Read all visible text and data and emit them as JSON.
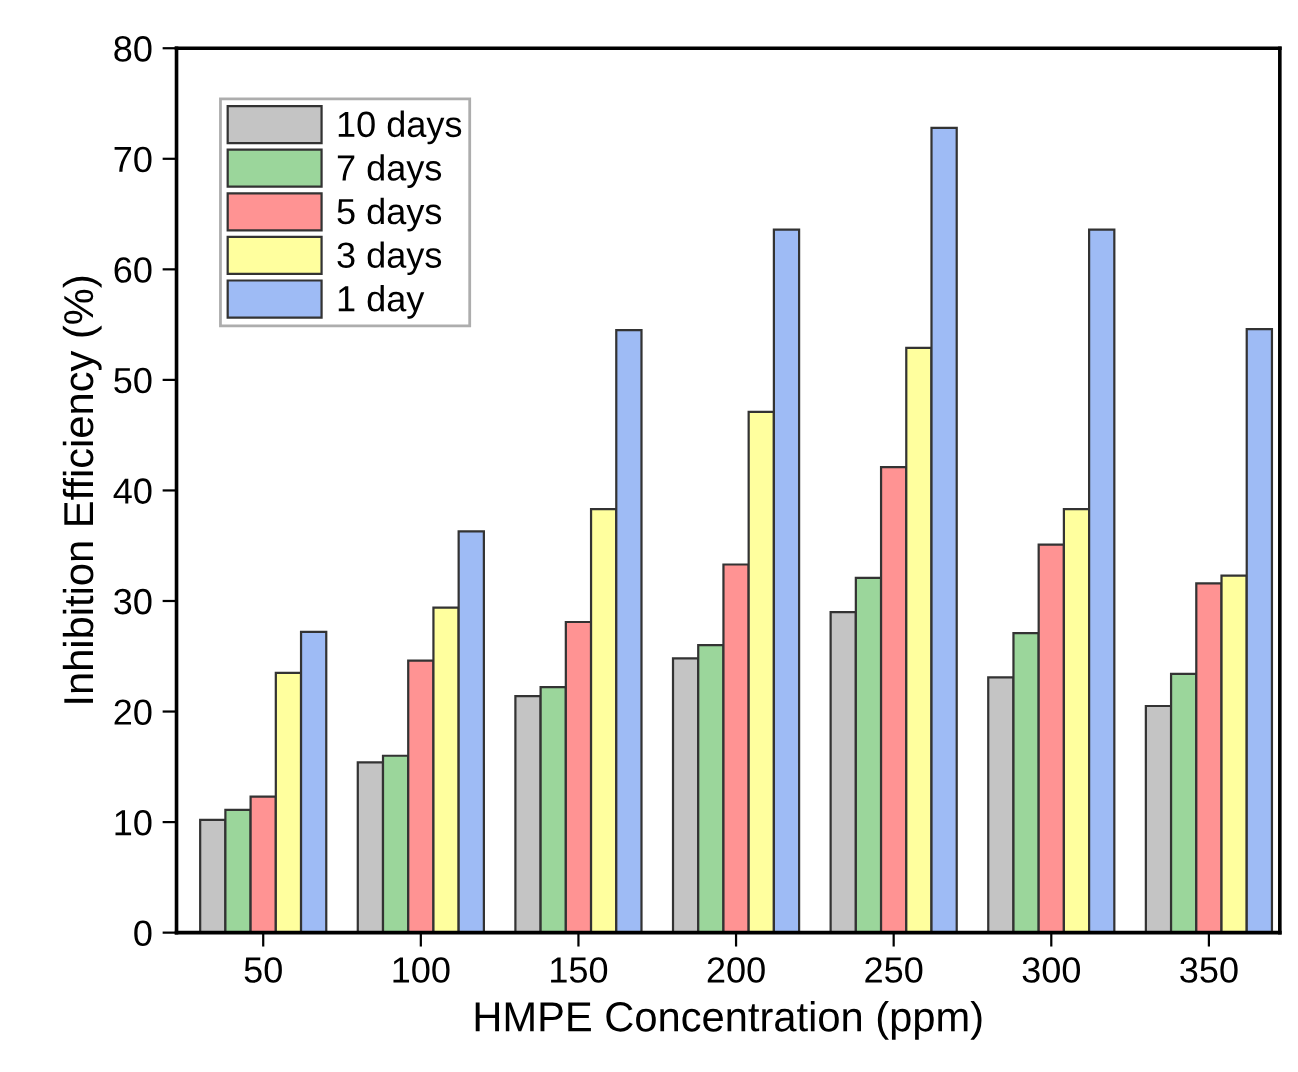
{
  "chart_data": {
    "type": "bar",
    "xlabel": "HMPE Concentration (ppm)",
    "ylabel": "Inhibition Efficiency (%)",
    "categories": [
      "50",
      "100",
      "150",
      "200",
      "250",
      "300",
      "350"
    ],
    "series": [
      {
        "name": "10 days",
        "color": "#c4c4c4",
        "values": [
          10.2,
          15.4,
          21.4,
          24.8,
          29.0,
          23.1,
          20.5
        ]
      },
      {
        "name": "7 days",
        "color": "#9bd69b",
        "values": [
          11.1,
          16.0,
          22.2,
          26.0,
          32.1,
          27.1,
          23.4
        ]
      },
      {
        "name": "5 days",
        "color": "#ff9393",
        "values": [
          12.3,
          24.6,
          28.1,
          33.3,
          42.1,
          35.1,
          31.6
        ]
      },
      {
        "name": "3 days",
        "color": "#ffff9e",
        "values": [
          23.5,
          29.4,
          38.3,
          47.1,
          52.9,
          38.3,
          32.3
        ]
      },
      {
        "name": "1 day",
        "color": "#9ebbf5",
        "values": [
          27.2,
          36.3,
          54.5,
          63.6,
          72.8,
          63.6,
          54.6
        ]
      }
    ],
    "ylim": [
      0,
      80
    ],
    "yticks": [
      0,
      10,
      20,
      30,
      40,
      50,
      60,
      70,
      80
    ],
    "grid": false,
    "legend": "top left"
  }
}
